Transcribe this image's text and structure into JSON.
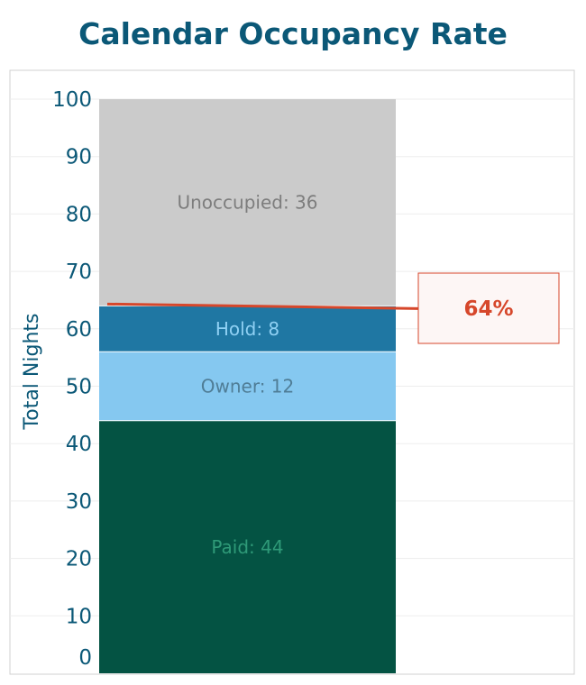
{
  "title": "Calendar Occupancy Rate",
  "colors": {
    "title": "#0b5877",
    "paid": "#045343",
    "owner": "#85c8f0",
    "hold": "#1f77a3",
    "unoccupied": "#cbcbcb",
    "callout": "#d6472b"
  },
  "chart_data": {
    "type": "bar",
    "stacked": true,
    "title": "Calendar Occupancy Rate",
    "xlabel": "",
    "ylabel": "Total Nights",
    "ylim": [
      0,
      100
    ],
    "yticks": [
      0,
      10,
      20,
      30,
      40,
      50,
      60,
      70,
      80,
      90,
      100
    ],
    "grid": true,
    "series": [
      {
        "name": "Paid",
        "value": 44,
        "label": "Paid: 44",
        "color": "#045343",
        "label_color": "#2f9a78"
      },
      {
        "name": "Owner",
        "value": 12,
        "label": "Owner: 12",
        "color": "#85c8f0",
        "label_color": "#4f7d96"
      },
      {
        "name": "Hold",
        "value": 8,
        "label": "Hold: 8",
        "color": "#1f77a3",
        "label_color": "#8fd0f3"
      },
      {
        "name": "Unoccupied",
        "value": 36,
        "label": "Unoccupied: 36",
        "color": "#cbcbcb",
        "label_color": "#7d7d7d"
      }
    ],
    "annotation": {
      "value": 64,
      "label": "64%"
    }
  }
}
